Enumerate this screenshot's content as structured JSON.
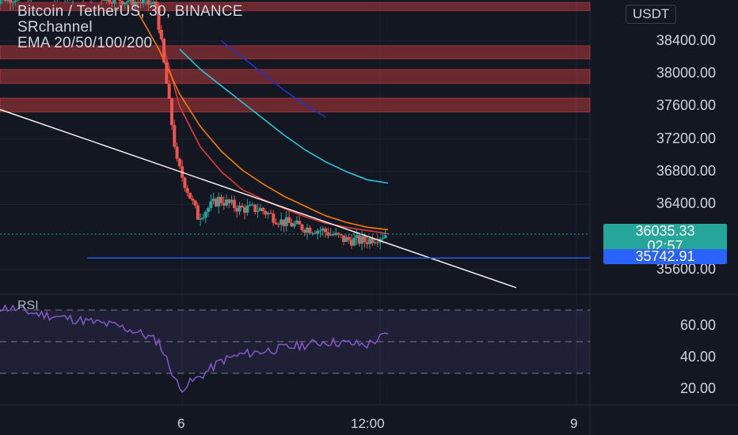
{
  "header": {
    "title": "Bitcoin / TetherUS, 30, BINANCE",
    "indicator_1": "SRchannel",
    "indicator_2": "EMA 20/50/100/200"
  },
  "quote_currency": "USDT",
  "current_price": "36035.33",
  "countdown": "02:57",
  "level_label": "35742.91",
  "rsi_label": "RSI",
  "colors": {
    "background": "#131722",
    "up": "#26a69a",
    "down": "#ef5350",
    "sr_zone": "#b2363a",
    "ema20": "#e53935",
    "ema50": "#f57c00",
    "ema100": "#26c6da",
    "ema200": "#2133c9",
    "trendline": "#ffffff",
    "support": "#2962ff",
    "rsi": "#7e57c2"
  },
  "chart_data": [
    {
      "type": "candlestick",
      "title": "Bitcoin / TetherUS, 30, BINANCE",
      "x_ticks": [
        "6",
        "12:00",
        "9"
      ],
      "y_ticks": [
        "38400.00",
        "38000.00",
        "37600.00",
        "37200.00",
        "36800.00",
        "36400.00",
        "35600.00"
      ],
      "ylim": [
        35300,
        38900
      ],
      "grid": true,
      "last_price": 36035.33,
      "horizontal_level": 35742.91,
      "sr_zones": [
        [
          38770,
          38870
        ],
        [
          38180,
          38340
        ],
        [
          37880,
          38050
        ],
        [
          37530,
          37700
        ]
      ],
      "ema_series": [
        {
          "name": "EMA 20",
          "values": [
            null,
            null,
            null,
            null,
            null,
            null,
            null,
            null,
            38550,
            37600,
            37100,
            36800,
            36580,
            36460,
            36350,
            36250,
            36170,
            36120,
            36080,
            36040
          ]
        },
        {
          "name": "EMA 50",
          "values": [
            null,
            null,
            null,
            null,
            null,
            null,
            null,
            38750,
            38300,
            37750,
            37350,
            37050,
            36820,
            36650,
            36500,
            36380,
            36260,
            36180,
            36120,
            36090
          ]
        },
        {
          "name": "EMA 100",
          "values": [
            null,
            null,
            null,
            null,
            null,
            null,
            null,
            null,
            null,
            38300,
            38050,
            37850,
            37650,
            37450,
            37250,
            37070,
            36920,
            36800,
            36700,
            36660
          ]
        },
        {
          "name": "EMA 200",
          "values": [
            null,
            null,
            null,
            null,
            null,
            null,
            null,
            null,
            null,
            null,
            null,
            38400,
            38200,
            38000,
            37800,
            37620,
            37470,
            null,
            null,
            null
          ]
        }
      ],
      "price": [
        38900,
        38930,
        38960,
        38990,
        39010,
        38960,
        38920,
        38880,
        38840,
        36900,
        36250,
        36460,
        36350,
        36340,
        36190,
        36120,
        36080,
        35970,
        35950,
        36035
      ]
    },
    {
      "type": "line",
      "title": "RSI",
      "y_ticks": [
        "60.00",
        "40.00",
        "20.00"
      ],
      "ylim": [
        10,
        80
      ],
      "bands": [
        30,
        50,
        70
      ],
      "series": [
        {
          "name": "RSI",
          "values": [
            72,
            71,
            68,
            66,
            64,
            62,
            60,
            56,
            50,
            20,
            28,
            38,
            42,
            44,
            46,
            48,
            50,
            49,
            48,
            55
          ]
        }
      ]
    }
  ]
}
